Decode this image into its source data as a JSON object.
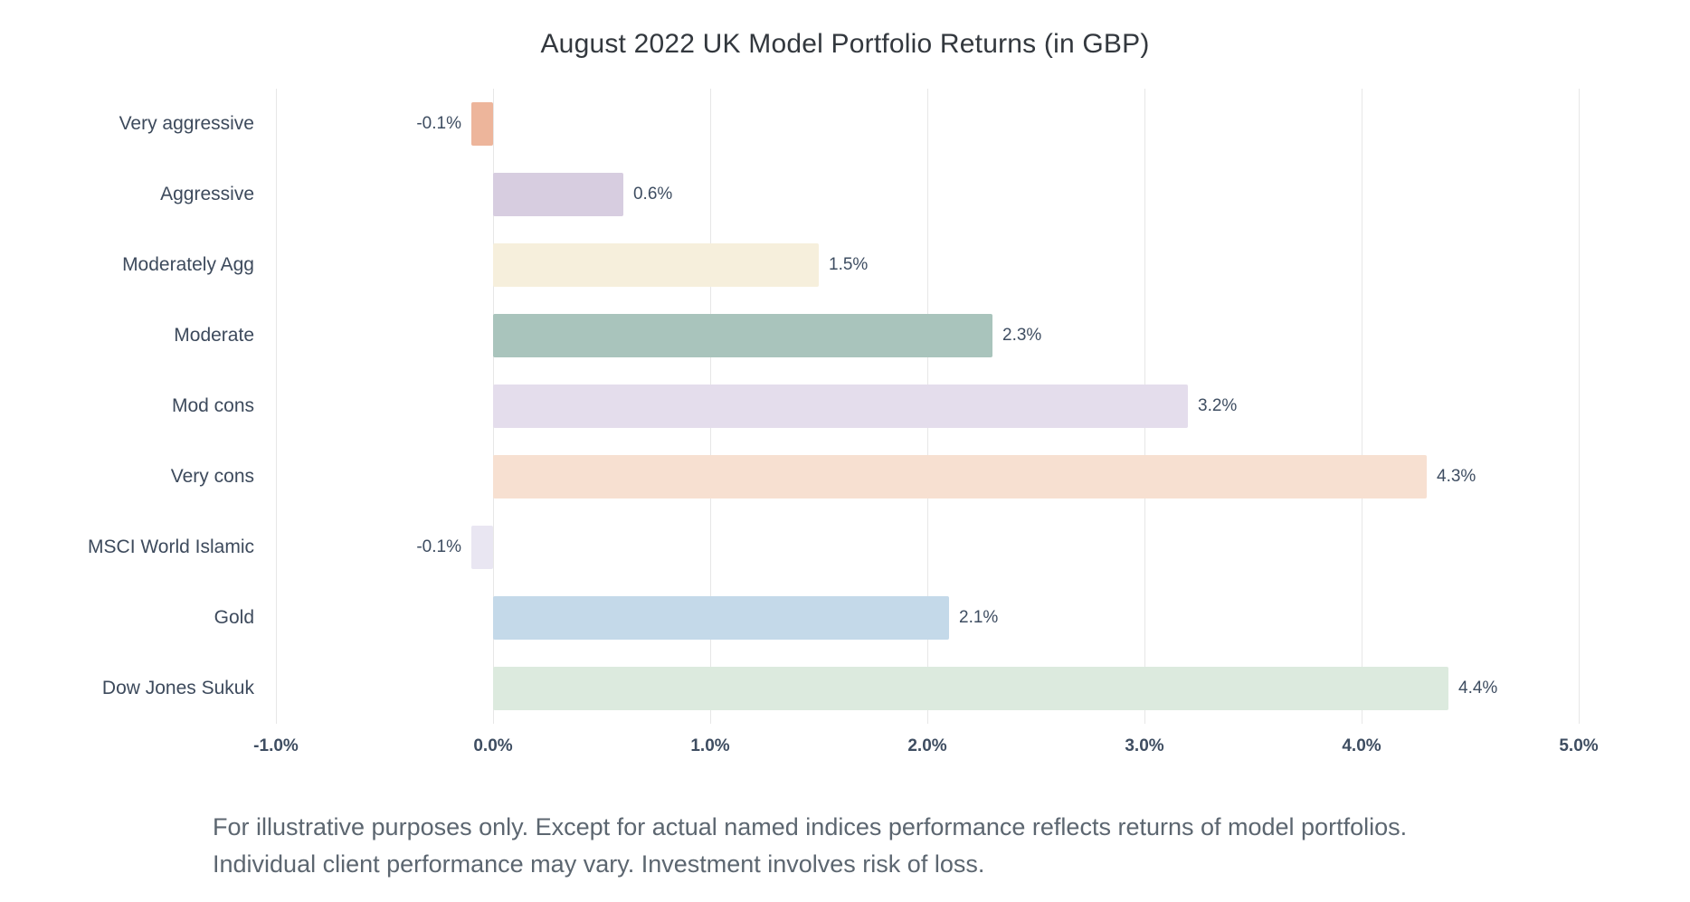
{
  "chart_data": {
    "type": "bar",
    "orientation": "horizontal",
    "title": "August 2022 UK Model Portfolio Returns (in GBP)",
    "categories": [
      "Very aggressive",
      "Aggressive",
      "Moderately Agg",
      "Moderate",
      "Mod cons",
      "Very cons",
      "MSCI World Islamic",
      "Gold",
      "Dow Jones Sukuk"
    ],
    "values": [
      -0.1,
      0.6,
      1.5,
      2.3,
      3.2,
      4.3,
      -0.1,
      2.1,
      4.4
    ],
    "value_labels": [
      "-0.1%",
      "0.6%",
      "1.5%",
      "2.3%",
      "3.2%",
      "4.3%",
      "-0.1%",
      "2.1%",
      "4.4%"
    ],
    "bar_colors": [
      "#edb59b",
      "#d7cde0",
      "#f6efdc",
      "#a9c4bc",
      "#e4ddec",
      "#f7e0d1",
      "#e9e6f2",
      "#c4d9e9",
      "#dceade"
    ],
    "xlim": [
      -1.0,
      5.0
    ],
    "x_ticks": [
      "-1.0%",
      "0.0%",
      "1.0%",
      "2.0%",
      "3.0%",
      "4.0%",
      "5.0%"
    ],
    "x_tick_values": [
      -1,
      0,
      1,
      2,
      3,
      4,
      5
    ],
    "xlabel": "",
    "ylabel": "",
    "grid": true,
    "legend": "none"
  },
  "footnote": {
    "line1": "For illustrative purposes only. Except for actual named indices performance reflects returns of model portfolios.",
    "line2": "Individual client performance may vary. Investment involves risk of loss."
  }
}
